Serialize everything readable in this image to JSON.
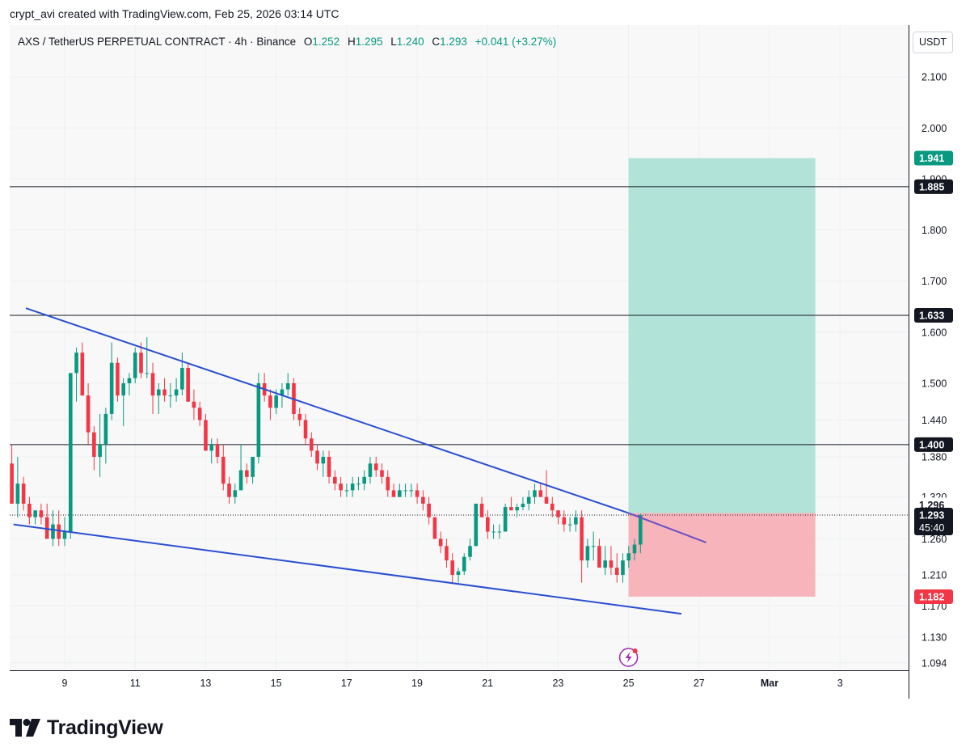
{
  "header": {
    "credit": "crypt_avi created with TradingView.com, Feb 25, 2026 03:14 UTC"
  },
  "legend": {
    "symbol": "AXS / TetherUS PERPETUAL CONTRACT · 4h · Binance",
    "open_label": "O",
    "open": "1.252",
    "high_label": "H",
    "high": "1.295",
    "low_label": "L",
    "low": "1.240",
    "close_label": "C",
    "close": "1.293",
    "change": "+0.041 (+3.27%)"
  },
  "currency_button": {
    "label": "USDT"
  },
  "colors": {
    "up": "#089981",
    "down": "#f23645",
    "trendline": "#2a4fd1",
    "level": "#131722",
    "target_zone": "#b2e3d9",
    "stop_zone": "#f7b4bb"
  },
  "chart_data": {
    "type": "candlestick",
    "symbol": "AXS / TetherUS PERPETUAL CONTRACT",
    "interval": "4h",
    "exchange": "Binance",
    "y_axis": {
      "min": 1.07,
      "max": 2.2,
      "ticks": [
        {
          "v": 2.1,
          "label": "2.100"
        },
        {
          "v": 2.0,
          "label": "2.000"
        },
        {
          "v": 1.9,
          "label": "1.900"
        },
        {
          "v": 1.8,
          "label": "1.800"
        },
        {
          "v": 1.7,
          "label": "1.700"
        },
        {
          "v": 1.6,
          "label": "1.600"
        },
        {
          "v": 1.5,
          "label": "1.500"
        },
        {
          "v": 1.44,
          "label": "1.440"
        },
        {
          "v": 1.38,
          "label": "1.380"
        },
        {
          "v": 1.32,
          "label": "1.320"
        },
        {
          "v": 1.26,
          "label": "1.260"
        },
        {
          "v": 1.21,
          "label": "1.210"
        },
        {
          "v": 1.17,
          "label": "1.170"
        },
        {
          "v": 1.13,
          "label": "1.130"
        },
        {
          "v": 1.094,
          "label": "1.094"
        }
      ]
    },
    "x_axis": {
      "min": 7.5,
      "max": 5.2,
      "range_note": "",
      "start": 7.5,
      "end": 33.25,
      "ticks": [
        {
          "t": 9,
          "label": "9"
        },
        {
          "t": 11,
          "label": "11"
        },
        {
          "t": 13,
          "label": "13"
        },
        {
          "t": 15,
          "label": "15"
        },
        {
          "t": 17,
          "label": "17"
        },
        {
          "t": 19,
          "label": "19"
        },
        {
          "t": 21,
          "label": "21"
        },
        {
          "t": 23,
          "label": "23"
        },
        {
          "t": 25,
          "label": "25"
        },
        {
          "t": 27,
          "label": "27"
        },
        {
          "t": 29,
          "label": "Mar",
          "bold": true
        },
        {
          "t": 31,
          "label": "3"
        }
      ]
    },
    "grid": true,
    "candles": [
      {
        "o": 1.37,
        "h": 1.4,
        "l": 1.31,
        "c": 1.31
      },
      {
        "o": 1.31,
        "h": 1.38,
        "l": 1.29,
        "c": 1.34
      },
      {
        "o": 1.34,
        "h": 1.35,
        "l": 1.3,
        "c": 1.31
      },
      {
        "o": 1.31,
        "h": 1.32,
        "l": 1.28,
        "c": 1.29
      },
      {
        "o": 1.29,
        "h": 1.3,
        "l": 1.28,
        "c": 1.3
      },
      {
        "o": 1.3,
        "h": 1.31,
        "l": 1.28,
        "c": 1.29
      },
      {
        "o": 1.29,
        "h": 1.31,
        "l": 1.26,
        "c": 1.26
      },
      {
        "o": 1.26,
        "h": 1.3,
        "l": 1.25,
        "c": 1.28
      },
      {
        "o": 1.28,
        "h": 1.3,
        "l": 1.25,
        "c": 1.26
      },
      {
        "o": 1.26,
        "h": 1.29,
        "l": 1.25,
        "c": 1.27
      },
      {
        "o": 1.27,
        "h": 1.52,
        "l": 1.26,
        "c": 1.52
      },
      {
        "o": 1.52,
        "h": 1.57,
        "l": 1.47,
        "c": 1.56
      },
      {
        "o": 1.56,
        "h": 1.58,
        "l": 1.48,
        "c": 1.48
      },
      {
        "o": 1.48,
        "h": 1.5,
        "l": 1.4,
        "c": 1.42
      },
      {
        "o": 1.42,
        "h": 1.43,
        "l": 1.36,
        "c": 1.38
      },
      {
        "o": 1.38,
        "h": 1.45,
        "l": 1.35,
        "c": 1.4
      },
      {
        "o": 1.4,
        "h": 1.46,
        "l": 1.37,
        "c": 1.45
      },
      {
        "o": 1.45,
        "h": 1.58,
        "l": 1.44,
        "c": 1.54
      },
      {
        "o": 1.54,
        "h": 1.55,
        "l": 1.47,
        "c": 1.48
      },
      {
        "o": 1.48,
        "h": 1.51,
        "l": 1.43,
        "c": 1.5
      },
      {
        "o": 1.5,
        "h": 1.52,
        "l": 1.48,
        "c": 1.51
      },
      {
        "o": 1.51,
        "h": 1.57,
        "l": 1.5,
        "c": 1.56
      },
      {
        "o": 1.56,
        "h": 1.58,
        "l": 1.51,
        "c": 1.52
      },
      {
        "o": 1.52,
        "h": 1.59,
        "l": 1.51,
        "c": 1.52
      },
      {
        "o": 1.52,
        "h": 1.54,
        "l": 1.45,
        "c": 1.48
      },
      {
        "o": 1.48,
        "h": 1.5,
        "l": 1.45,
        "c": 1.49
      },
      {
        "o": 1.49,
        "h": 1.51,
        "l": 1.47,
        "c": 1.48
      },
      {
        "o": 1.48,
        "h": 1.5,
        "l": 1.46,
        "c": 1.48
      },
      {
        "o": 1.48,
        "h": 1.51,
        "l": 1.47,
        "c": 1.49
      },
      {
        "o": 1.49,
        "h": 1.56,
        "l": 1.48,
        "c": 1.53
      },
      {
        "o": 1.53,
        "h": 1.54,
        "l": 1.47,
        "c": 1.47
      },
      {
        "o": 1.47,
        "h": 1.49,
        "l": 1.44,
        "c": 1.46
      },
      {
        "o": 1.46,
        "h": 1.47,
        "l": 1.43,
        "c": 1.44
      },
      {
        "o": 1.44,
        "h": 1.45,
        "l": 1.39,
        "c": 1.39
      },
      {
        "o": 1.39,
        "h": 1.41,
        "l": 1.37,
        "c": 1.4
      },
      {
        "o": 1.4,
        "h": 1.41,
        "l": 1.37,
        "c": 1.38
      },
      {
        "o": 1.38,
        "h": 1.4,
        "l": 1.33,
        "c": 1.34
      },
      {
        "o": 1.34,
        "h": 1.35,
        "l": 1.31,
        "c": 1.32
      },
      {
        "o": 1.32,
        "h": 1.34,
        "l": 1.31,
        "c": 1.33
      },
      {
        "o": 1.33,
        "h": 1.4,
        "l": 1.33,
        "c": 1.36
      },
      {
        "o": 1.36,
        "h": 1.37,
        "l": 1.34,
        "c": 1.35
      },
      {
        "o": 1.35,
        "h": 1.38,
        "l": 1.34,
        "c": 1.38
      },
      {
        "o": 1.38,
        "h": 1.52,
        "l": 1.37,
        "c": 1.5
      },
      {
        "o": 1.5,
        "h": 1.52,
        "l": 1.47,
        "c": 1.48
      },
      {
        "o": 1.48,
        "h": 1.49,
        "l": 1.44,
        "c": 1.46
      },
      {
        "o": 1.46,
        "h": 1.49,
        "l": 1.45,
        "c": 1.48
      },
      {
        "o": 1.48,
        "h": 1.5,
        "l": 1.46,
        "c": 1.49
      },
      {
        "o": 1.49,
        "h": 1.52,
        "l": 1.48,
        "c": 1.5
      },
      {
        "o": 1.5,
        "h": 1.51,
        "l": 1.44,
        "c": 1.45
      },
      {
        "o": 1.45,
        "h": 1.46,
        "l": 1.43,
        "c": 1.44
      },
      {
        "o": 1.44,
        "h": 1.45,
        "l": 1.4,
        "c": 1.41
      },
      {
        "o": 1.41,
        "h": 1.42,
        "l": 1.38,
        "c": 1.39
      },
      {
        "o": 1.39,
        "h": 1.4,
        "l": 1.36,
        "c": 1.37
      },
      {
        "o": 1.37,
        "h": 1.39,
        "l": 1.35,
        "c": 1.38
      },
      {
        "o": 1.38,
        "h": 1.39,
        "l": 1.34,
        "c": 1.35
      },
      {
        "o": 1.35,
        "h": 1.36,
        "l": 1.33,
        "c": 1.34
      },
      {
        "o": 1.34,
        "h": 1.35,
        "l": 1.32,
        "c": 1.33
      },
      {
        "o": 1.33,
        "h": 1.34,
        "l": 1.32,
        "c": 1.33
      },
      {
        "o": 1.33,
        "h": 1.35,
        "l": 1.32,
        "c": 1.34
      },
      {
        "o": 1.34,
        "h": 1.35,
        "l": 1.33,
        "c": 1.34
      },
      {
        "o": 1.34,
        "h": 1.36,
        "l": 1.33,
        "c": 1.35
      },
      {
        "o": 1.35,
        "h": 1.38,
        "l": 1.34,
        "c": 1.37
      },
      {
        "o": 1.37,
        "h": 1.38,
        "l": 1.35,
        "c": 1.36
      },
      {
        "o": 1.36,
        "h": 1.37,
        "l": 1.34,
        "c": 1.35
      },
      {
        "o": 1.35,
        "h": 1.36,
        "l": 1.32,
        "c": 1.33
      },
      {
        "o": 1.33,
        "h": 1.34,
        "l": 1.32,
        "c": 1.32
      },
      {
        "o": 1.32,
        "h": 1.34,
        "l": 1.32,
        "c": 1.33
      },
      {
        "o": 1.33,
        "h": 1.34,
        "l": 1.32,
        "c": 1.33
      },
      {
        "o": 1.33,
        "h": 1.34,
        "l": 1.32,
        "c": 1.33
      },
      {
        "o": 1.33,
        "h": 1.34,
        "l": 1.31,
        "c": 1.32
      },
      {
        "o": 1.32,
        "h": 1.33,
        "l": 1.3,
        "c": 1.31
      },
      {
        "o": 1.31,
        "h": 1.32,
        "l": 1.28,
        "c": 1.29
      },
      {
        "o": 1.29,
        "h": 1.29,
        "l": 1.26,
        "c": 1.26
      },
      {
        "o": 1.26,
        "h": 1.27,
        "l": 1.24,
        "c": 1.25
      },
      {
        "o": 1.25,
        "h": 1.26,
        "l": 1.22,
        "c": 1.23
      },
      {
        "o": 1.23,
        "h": 1.24,
        "l": 1.2,
        "c": 1.21
      },
      {
        "o": 1.21,
        "h": 1.22,
        "l": 1.2,
        "c": 1.215
      },
      {
        "o": 1.215,
        "h": 1.24,
        "l": 1.21,
        "c": 1.235
      },
      {
        "o": 1.235,
        "h": 1.26,
        "l": 1.23,
        "c": 1.25
      },
      {
        "o": 1.25,
        "h": 1.31,
        "l": 1.25,
        "c": 1.31
      },
      {
        "o": 1.31,
        "h": 1.32,
        "l": 1.29,
        "c": 1.29
      },
      {
        "o": 1.29,
        "h": 1.3,
        "l": 1.26,
        "c": 1.27
      },
      {
        "o": 1.27,
        "h": 1.28,
        "l": 1.26,
        "c": 1.27
      },
      {
        "o": 1.27,
        "h": 1.28,
        "l": 1.26,
        "c": 1.27
      },
      {
        "o": 1.27,
        "h": 1.31,
        "l": 1.27,
        "c": 1.305
      },
      {
        "o": 1.305,
        "h": 1.32,
        "l": 1.3,
        "c": 1.3
      },
      {
        "o": 1.3,
        "h": 1.31,
        "l": 1.29,
        "c": 1.305
      },
      {
        "o": 1.305,
        "h": 1.32,
        "l": 1.3,
        "c": 1.31
      },
      {
        "o": 1.31,
        "h": 1.33,
        "l": 1.3,
        "c": 1.32
      },
      {
        "o": 1.32,
        "h": 1.34,
        "l": 1.31,
        "c": 1.33
      },
      {
        "o": 1.33,
        "h": 1.34,
        "l": 1.32,
        "c": 1.32
      },
      {
        "o": 1.32,
        "h": 1.36,
        "l": 1.31,
        "c": 1.31
      },
      {
        "o": 1.31,
        "h": 1.32,
        "l": 1.29,
        "c": 1.3
      },
      {
        "o": 1.3,
        "h": 1.3,
        "l": 1.28,
        "c": 1.29
      },
      {
        "o": 1.29,
        "h": 1.3,
        "l": 1.27,
        "c": 1.28
      },
      {
        "o": 1.28,
        "h": 1.29,
        "l": 1.27,
        "c": 1.28
      },
      {
        "o": 1.28,
        "h": 1.3,
        "l": 1.27,
        "c": 1.29
      },
      {
        "o": 1.29,
        "h": 1.3,
        "l": 1.2,
        "c": 1.23
      },
      {
        "o": 1.23,
        "h": 1.26,
        "l": 1.22,
        "c": 1.25
      },
      {
        "o": 1.25,
        "h": 1.27,
        "l": 1.23,
        "c": 1.25
      },
      {
        "o": 1.25,
        "h": 1.26,
        "l": 1.22,
        "c": 1.22
      },
      {
        "o": 1.22,
        "h": 1.25,
        "l": 1.21,
        "c": 1.23
      },
      {
        "o": 1.23,
        "h": 1.25,
        "l": 1.21,
        "c": 1.22
      },
      {
        "o": 1.22,
        "h": 1.24,
        "l": 1.2,
        "c": 1.21
      },
      {
        "o": 1.21,
        "h": 1.24,
        "l": 1.2,
        "c": 1.23
      },
      {
        "o": 1.23,
        "h": 1.25,
        "l": 1.22,
        "c": 1.24
      },
      {
        "o": 1.24,
        "h": 1.26,
        "l": 1.23,
        "c": 1.252
      },
      {
        "o": 1.252,
        "h": 1.295,
        "l": 1.24,
        "c": 1.293
      }
    ],
    "candles_start_t": 7.5,
    "candles_step_t": 0.1667,
    "horizontal_levels": [
      1.885,
      1.633,
      1.4
    ],
    "current_price_line": 1.293,
    "trendlines": [
      {
        "name": "upper",
        "t1": 7.9,
        "p1": 1.647,
        "t2": 25.0,
        "p2": 1.296
      },
      {
        "name": "upper-extension",
        "t1": 25.0,
        "p1": 1.296,
        "t2": 27.2,
        "p2": 1.255
      },
      {
        "name": "lower",
        "t1": 7.55,
        "p1": 1.28,
        "t2": 26.5,
        "p2": 1.16
      }
    ],
    "position": {
      "t_start": 25.0,
      "t_end": 30.3,
      "entry": 1.296,
      "target": 1.941,
      "stop": 1.182
    },
    "price_labels": [
      {
        "v": 1.941,
        "label": "1.941",
        "kind": "target"
      },
      {
        "v": 1.885,
        "label": "1.885",
        "kind": "level"
      },
      {
        "v": 1.633,
        "label": "1.633",
        "kind": "level"
      },
      {
        "v": 1.4,
        "label": "1.400",
        "kind": "level"
      },
      {
        "v": 1.296,
        "label": "1.296",
        "kind": "entry"
      },
      {
        "v": 1.293,
        "label": "1.293",
        "kind": "current",
        "sub": "45:40"
      },
      {
        "v": 1.182,
        "label": "1.182",
        "kind": "stop"
      }
    ]
  },
  "branding": {
    "name": "TradingView"
  }
}
